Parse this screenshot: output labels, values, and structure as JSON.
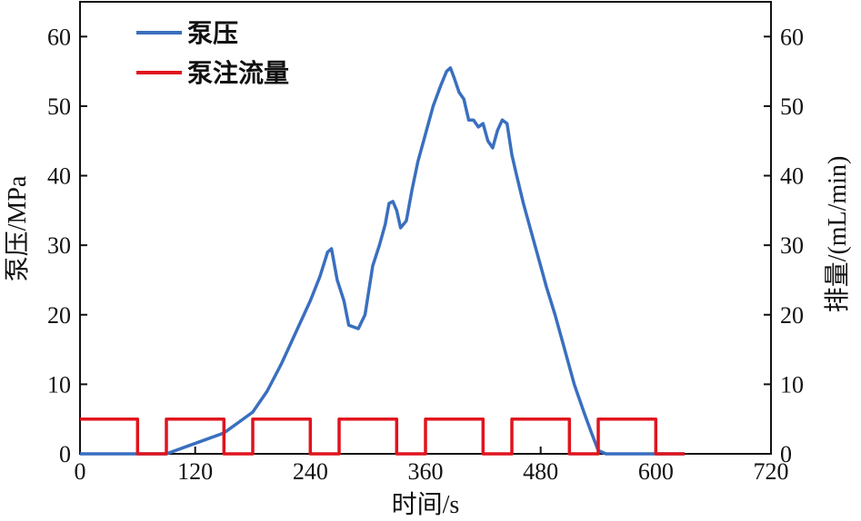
{
  "chart_data": {
    "type": "line",
    "title": "",
    "xlabel": "时间/s",
    "ylabel_left": "泵压/MPa",
    "ylabel_right": "排量/(mL/min)",
    "xlim": [
      0,
      720
    ],
    "ylim_left": [
      0,
      65
    ],
    "ylim_right": [
      0,
      65
    ],
    "xticks": [
      "0",
      "120",
      "240",
      "360",
      "480",
      "600",
      "720"
    ],
    "yticks_left": [
      "0",
      "10",
      "20",
      "30",
      "40",
      "50",
      "60"
    ],
    "yticks_right": [
      "0",
      "10",
      "20",
      "30",
      "40",
      "50",
      "60"
    ],
    "grid": false,
    "legend_position": "top-left",
    "series": [
      {
        "name": "泵压",
        "axis": "left",
        "color": "#3a6fbf",
        "x": [
          0,
          60,
          90,
          110,
          130,
          150,
          165,
          180,
          195,
          210,
          225,
          240,
          250,
          258,
          262,
          268,
          275,
          280,
          290,
          297,
          305,
          312,
          318,
          322,
          326,
          330,
          334,
          340,
          346,
          352,
          360,
          368,
          376,
          382,
          386,
          390,
          395,
          400,
          405,
          410,
          415,
          420,
          425,
          430,
          435,
          440,
          445,
          450,
          455,
          462,
          470,
          478,
          486,
          495,
          505,
          515,
          525,
          533,
          540,
          548,
          560,
          580,
          600,
          615,
          630
        ],
        "y": [
          0,
          0,
          0,
          1,
          2,
          3,
          4.5,
          6,
          9,
          13,
          17.5,
          22,
          25.5,
          29,
          29.5,
          25,
          22,
          18.5,
          18,
          20,
          27,
          30,
          33,
          36,
          36.3,
          35,
          32.5,
          33.5,
          38,
          42,
          46,
          50,
          53,
          55,
          55.5,
          54,
          52,
          51,
          48,
          48,
          47,
          47.5,
          45,
          44,
          46.5,
          48,
          47.5,
          43,
          40,
          36,
          32,
          28,
          24,
          20,
          15,
          10,
          6,
          3,
          0.5,
          0,
          0,
          0,
          0,
          0,
          0
        ]
      },
      {
        "name": "泵注流量",
        "axis": "right",
        "color": "#e0141e",
        "x": [
          0,
          60,
          60,
          90,
          90,
          150,
          150,
          180,
          180,
          240,
          240,
          270,
          270,
          330,
          330,
          360,
          360,
          420,
          420,
          450,
          450,
          510,
          510,
          540,
          540,
          600,
          600,
          630
        ],
        "y": [
          5,
          5,
          0,
          0,
          5,
          5,
          0,
          0,
          5,
          5,
          0,
          0,
          5,
          5,
          0,
          0,
          5,
          5,
          0,
          0,
          5,
          5,
          0,
          0,
          5,
          5,
          0,
          0
        ]
      }
    ]
  }
}
